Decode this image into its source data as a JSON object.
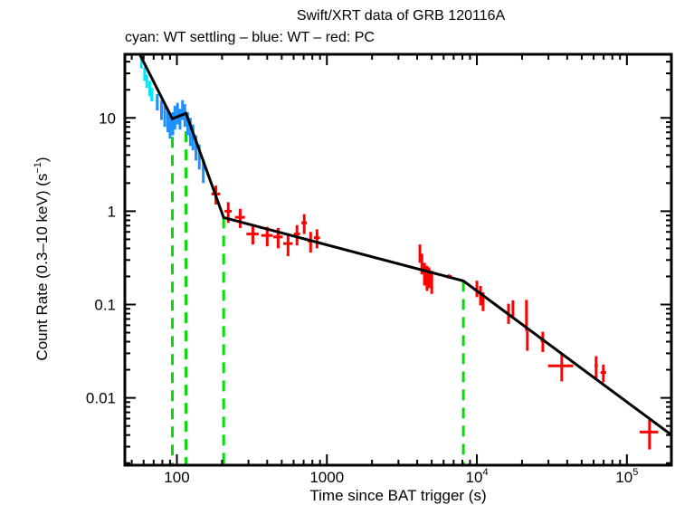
{
  "chart_data": {
    "type": "scatter",
    "title": "Swift/XRT data of GRB 120116A",
    "subtitle": "cyan: WT settling – blue: WT – red: PC",
    "xlabel": "Time since BAT trigger (s)",
    "ylabel": "Count Rate (0.3–10 keV) (s",
    "ylabel_sup": "−1",
    "ylabel_end": ")",
    "xscale": "log",
    "yscale": "log",
    "xlim": [
      45,
      198000
    ],
    "ylim": [
      0.0019,
      48
    ],
    "xticks": [
      {
        "value": 100,
        "label": "100",
        "sup": ""
      },
      {
        "value": 1000,
        "label": "1000",
        "sup": ""
      },
      {
        "value": 10000,
        "label": "10",
        "sup": "4"
      },
      {
        "value": 100000,
        "label": "10",
        "sup": "5"
      }
    ],
    "yticks": [
      {
        "value": 10,
        "label": "10"
      },
      {
        "value": 1,
        "label": "1"
      },
      {
        "value": 0.1,
        "label": "0.1"
      },
      {
        "value": 0.01,
        "label": "0.01"
      }
    ],
    "grid": false,
    "colors": {
      "wt_settling": "#00e5ff",
      "wt": "#1e90ff",
      "pc": "#ff0000",
      "fit": "#000000",
      "breaks": "#00e000"
    },
    "series": [
      {
        "name": "WT settling",
        "color_key": "wt_settling",
        "points": [
          {
            "t": 58,
            "r": 40,
            "terr": 1,
            "rerr": 6
          },
          {
            "t": 61,
            "r": 30,
            "terr": 1,
            "rerr": 5
          },
          {
            "t": 63,
            "r": 25,
            "terr": 1,
            "rerr": 4
          },
          {
            "t": 66,
            "r": 21,
            "terr": 1,
            "rerr": 4
          },
          {
            "t": 68,
            "r": 18,
            "terr": 1,
            "rerr": 3
          }
        ]
      },
      {
        "name": "WT",
        "color_key": "wt",
        "points": [
          {
            "t": 74,
            "r": 15,
            "terr": 1.5,
            "rerr": 3
          },
          {
            "t": 79,
            "r": 12.5,
            "terr": 1.5,
            "rerr": 3
          },
          {
            "t": 83,
            "r": 11,
            "terr": 1.5,
            "rerr": 3
          },
          {
            "t": 87,
            "r": 9.5,
            "terr": 1.5,
            "rerr": 2.5
          },
          {
            "t": 90,
            "r": 8.5,
            "terr": 1.5,
            "rerr": 2.5
          },
          {
            "t": 94,
            "r": 9.0,
            "terr": 1.5,
            "rerr": 2.5
          },
          {
            "t": 97,
            "r": 10.5,
            "terr": 1.5,
            "rerr": 3
          },
          {
            "t": 101,
            "r": 11.5,
            "terr": 1.5,
            "rerr": 3
          },
          {
            "t": 105,
            "r": 10,
            "terr": 1.5,
            "rerr": 2.5
          },
          {
            "t": 109,
            "r": 12.5,
            "terr": 1.5,
            "rerr": 3
          },
          {
            "t": 113,
            "r": 11,
            "terr": 1.5,
            "rerr": 3
          },
          {
            "t": 118,
            "r": 9,
            "terr": 2,
            "rerr": 2.5
          },
          {
            "t": 123,
            "r": 7.5,
            "terr": 2,
            "rerr": 2.5
          },
          {
            "t": 128,
            "r": 6.5,
            "terr": 2,
            "rerr": 2
          },
          {
            "t": 134,
            "r": 5,
            "terr": 2,
            "rerr": 1.5
          },
          {
            "t": 141,
            "r": 4,
            "terr": 2,
            "rerr": 1.2
          },
          {
            "t": 150,
            "r": 2.8,
            "terr": 3,
            "rerr": 0.8
          }
        ]
      },
      {
        "name": "PC",
        "color_key": "pc",
        "points": [
          {
            "t": 182,
            "r": 1.53,
            "terr": 12,
            "rerr": 0.35
          },
          {
            "t": 220,
            "r": 1.0,
            "terr": 12,
            "rerr": 0.25
          },
          {
            "t": 264,
            "r": 0.86,
            "terr": 20,
            "rerr": 0.2
          },
          {
            "t": 321,
            "r": 0.57,
            "terr": 30,
            "rerr": 0.13
          },
          {
            "t": 400,
            "r": 0.55,
            "terr": 35,
            "rerr": 0.13
          },
          {
            "t": 473,
            "r": 0.53,
            "terr": 35,
            "rerr": 0.13
          },
          {
            "t": 551,
            "r": 0.45,
            "terr": 40,
            "rerr": 0.12
          },
          {
            "t": 632,
            "r": 0.57,
            "terr": 30,
            "rerr": 0.14
          },
          {
            "t": 706,
            "r": 0.75,
            "terr": 30,
            "rerr": 0.18
          },
          {
            "t": 779,
            "r": 0.48,
            "terr": 35,
            "rerr": 0.12
          },
          {
            "t": 859,
            "r": 0.52,
            "terr": 40,
            "rerr": 0.12
          },
          {
            "t": 4170,
            "r": 0.36,
            "terr": 40,
            "rerr": 0.08
          },
          {
            "t": 4300,
            "r": 0.28,
            "terr": 40,
            "rerr": 0.07
          },
          {
            "t": 4470,
            "r": 0.22,
            "terr": 40,
            "rerr": 0.06
          },
          {
            "t": 4650,
            "r": 0.2,
            "terr": 40,
            "rerr": 0.06
          },
          {
            "t": 4800,
            "r": 0.2,
            "terr": 40,
            "rerr": 0.05
          },
          {
            "t": 5000,
            "r": 0.18,
            "terr": 40,
            "rerr": 0.05
          },
          {
            "t": 6500,
            "r": 0.2,
            "terr": 300,
            "rerr": 0.01
          },
          {
            "t": 10000,
            "r": 0.15,
            "terr": 200,
            "rerr": 0.03
          },
          {
            "t": 10570,
            "r": 0.128,
            "terr": 200,
            "rerr": 0.03
          },
          {
            "t": 11000,
            "r": 0.11,
            "terr": 200,
            "rerr": 0.025
          },
          {
            "t": 16250,
            "r": 0.082,
            "terr": 300,
            "rerr": 0.02
          },
          {
            "t": 17400,
            "r": 0.091,
            "terr": 300,
            "rerr": 0.02
          },
          {
            "t": 21400,
            "r": 0.082,
            "terr": 300,
            "rerr": 0.03
          },
          {
            "t": 21700,
            "r": 0.042,
            "terr": 400,
            "rerr": 0.01
          },
          {
            "t": 27500,
            "r": 0.041,
            "terr": 900,
            "rerr": 0.01
          },
          {
            "t": 36800,
            "r": 0.022,
            "terr": 7000,
            "rerr": 0.007
          },
          {
            "t": 62400,
            "r": 0.022,
            "terr": 1500,
            "rerr": 0.006
          },
          {
            "t": 69700,
            "r": 0.0187,
            "terr": 3000,
            "rerr": 0.004
          },
          {
            "t": 141600,
            "r": 0.0043,
            "terr": 20000,
            "rerr": 0.0015
          }
        ]
      }
    ],
    "fit": {
      "name": "Power-law fit",
      "vertices": [
        {
          "t": 56.6,
          "r": 47.9
        },
        {
          "t": 93.3,
          "r": 9.78
        },
        {
          "t": 115,
          "r": 11.2
        },
        {
          "t": 205,
          "r": 0.855
        },
        {
          "t": 8130,
          "r": 0.179
        },
        {
          "t": 194500,
          "r": 0.0041
        }
      ]
    },
    "breaks": [
      93.3,
      115,
      205,
      8130
    ]
  }
}
